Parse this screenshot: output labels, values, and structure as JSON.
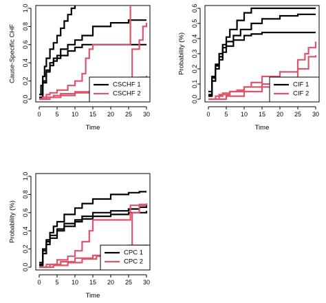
{
  "colors": {
    "black_series": "#000000",
    "red_series": "#df536b",
    "background": "#ffffff"
  },
  "chart_data": [
    {
      "type": "line",
      "step": true,
      "xlabel": "Time",
      "ylabel": "Cause-Specific CHF",
      "xlim": [
        0,
        30
      ],
      "ylim": [
        0,
        1.0
      ],
      "xticks": [
        0,
        5,
        10,
        15,
        20,
        25,
        30
      ],
      "yticks": [
        0.0,
        0.2,
        0.4,
        0.6,
        0.8,
        1.0
      ],
      "legend": {
        "placement": "bottom-right",
        "entries": [
          {
            "label": "CSCHF 1",
            "color": "#000000"
          },
          {
            "label": "CSCHF 2",
            "color": "#df536b"
          }
        ]
      },
      "series": [
        {
          "color": "#000000",
          "x": [
            0,
            0.5,
            1,
            1.5,
            2,
            3,
            4,
            5,
            6,
            7,
            8,
            9,
            10,
            12,
            30
          ],
          "y": [
            0.05,
            0.15,
            0.25,
            0.36,
            0.45,
            0.55,
            0.62,
            0.7,
            0.78,
            0.86,
            0.93,
            1.0,
            1.05,
            1.07,
            1.07
          ]
        },
        {
          "color": "#000000",
          "x": [
            0,
            1,
            2,
            3,
            4,
            5,
            6,
            8,
            10,
            12,
            15,
            20,
            25,
            30
          ],
          "y": [
            0.05,
            0.2,
            0.32,
            0.4,
            0.45,
            0.48,
            0.55,
            0.6,
            0.65,
            0.7,
            0.8,
            0.84,
            0.87,
            0.87
          ]
        },
        {
          "color": "#000000",
          "x": [
            0,
            1,
            2,
            3,
            4,
            5,
            6,
            8,
            10,
            12,
            15,
            20,
            30
          ],
          "y": [
            0.02,
            0.18,
            0.3,
            0.37,
            0.42,
            0.45,
            0.48,
            0.53,
            0.57,
            0.6,
            0.6,
            0.6,
            0.6
          ]
        },
        {
          "color": "#df536b",
          "x": [
            0,
            1,
            2,
            3,
            5,
            8,
            10,
            12,
            13,
            14,
            15,
            25,
            25.5,
            30
          ],
          "y": [
            0,
            0.02,
            0.05,
            0.07,
            0.1,
            0.15,
            0.2,
            0.28,
            0.45,
            0.55,
            0.6,
            0.6,
            1.07,
            1.07
          ]
        },
        {
          "color": "#df536b",
          "x": [
            0,
            2,
            4,
            6,
            10,
            15,
            20,
            25,
            26,
            28,
            29,
            30
          ],
          "y": [
            0,
            0.02,
            0.04,
            0.06,
            0.08,
            0.1,
            0.12,
            0.15,
            0.55,
            0.65,
            0.8,
            0.84
          ]
        },
        {
          "color": "#df536b",
          "x": [
            0,
            3,
            6,
            10,
            15,
            20,
            25,
            28,
            30
          ],
          "y": [
            0,
            0.02,
            0.04,
            0.07,
            0.1,
            0.13,
            0.17,
            0.24,
            0.26
          ]
        }
      ]
    },
    {
      "type": "line",
      "step": true,
      "xlabel": "Time",
      "ylabel": "Probability (%)",
      "xlim": [
        0,
        30
      ],
      "ylim": [
        0,
        0.6
      ],
      "xticks": [
        0,
        5,
        10,
        15,
        20,
        25,
        30
      ],
      "yticks": [
        0.0,
        0.1,
        0.2,
        0.3,
        0.4,
        0.5,
        0.6
      ],
      "legend": {
        "placement": "bottom-right",
        "entries": [
          {
            "label": "CIF 1",
            "color": "#000000"
          },
          {
            "label": "CIF 2",
            "color": "#df536b"
          }
        ]
      },
      "series": [
        {
          "color": "#000000",
          "x": [
            0,
            1,
            2,
            3,
            4,
            5,
            6,
            8,
            10,
            12,
            15,
            30
          ],
          "y": [
            0.05,
            0.15,
            0.23,
            0.3,
            0.36,
            0.41,
            0.46,
            0.52,
            0.57,
            0.6,
            0.6,
            0.6
          ]
        },
        {
          "color": "#000000",
          "x": [
            0,
            1,
            2,
            3,
            4,
            5,
            7,
            9,
            12,
            15,
            20,
            25,
            30
          ],
          "y": [
            0.03,
            0.14,
            0.22,
            0.28,
            0.34,
            0.38,
            0.42,
            0.46,
            0.5,
            0.53,
            0.55,
            0.56,
            0.56
          ]
        },
        {
          "color": "#000000",
          "x": [
            0,
            1,
            2,
            3,
            4,
            5,
            7,
            10,
            12,
            15,
            30
          ],
          "y": [
            0.02,
            0.12,
            0.2,
            0.26,
            0.31,
            0.35,
            0.39,
            0.42,
            0.43,
            0.44,
            0.44
          ]
        },
        {
          "color": "#df536b",
          "x": [
            0,
            2,
            4,
            6,
            8,
            10,
            12,
            15,
            20,
            25,
            27,
            28,
            30
          ],
          "y": [
            0,
            0.02,
            0.04,
            0.05,
            0.06,
            0.08,
            0.11,
            0.15,
            0.18,
            0.26,
            0.3,
            0.34,
            0.38
          ]
        },
        {
          "color": "#df536b",
          "x": [
            0,
            3,
            6,
            10,
            15,
            20,
            25,
            28,
            30
          ],
          "y": [
            0,
            0.03,
            0.05,
            0.08,
            0.1,
            0.12,
            0.2,
            0.28,
            0.29
          ]
        },
        {
          "color": "#df536b",
          "x": [
            0,
            5,
            10,
            15,
            20,
            25,
            30
          ],
          "y": [
            0,
            0.02,
            0.05,
            0.08,
            0.1,
            0.12,
            0.13
          ]
        }
      ]
    },
    {
      "type": "line",
      "step": true,
      "xlabel": "Time",
      "ylabel": "Probability (%)",
      "xlim": [
        0,
        30
      ],
      "ylim": [
        0,
        1.0
      ],
      "xticks": [
        0,
        5,
        10,
        15,
        20,
        25,
        30
      ],
      "yticks": [
        0.0,
        0.2,
        0.4,
        0.6,
        0.8,
        1.0
      ],
      "legend": {
        "placement": "bottom-right",
        "entries": [
          {
            "label": "CPC 1",
            "color": "#000000"
          },
          {
            "label": "CPC 2",
            "color": "#df536b"
          }
        ]
      },
      "series": [
        {
          "color": "#000000",
          "x": [
            0,
            1,
            2,
            3,
            4,
            5,
            7,
            10,
            12,
            15,
            20,
            25,
            28,
            30
          ],
          "y": [
            0.05,
            0.2,
            0.3,
            0.38,
            0.45,
            0.5,
            0.58,
            0.65,
            0.7,
            0.75,
            0.8,
            0.82,
            0.83,
            0.83
          ]
        },
        {
          "color": "#000000",
          "x": [
            0,
            1,
            2,
            3,
            5,
            7,
            10,
            12,
            15,
            20,
            25,
            28,
            30
          ],
          "y": [
            0.03,
            0.18,
            0.28,
            0.35,
            0.42,
            0.48,
            0.52,
            0.56,
            0.6,
            0.62,
            0.64,
            0.66,
            0.7
          ]
        },
        {
          "color": "#000000",
          "x": [
            0,
            1,
            2,
            3,
            5,
            7,
            10,
            12,
            15,
            20,
            25,
            30
          ],
          "y": [
            0.02,
            0.15,
            0.25,
            0.32,
            0.4,
            0.45,
            0.5,
            0.53,
            0.56,
            0.58,
            0.6,
            0.62
          ]
        },
        {
          "color": "#df536b",
          "x": [
            0,
            2,
            5,
            8,
            10,
            12,
            14,
            15,
            20,
            25,
            25.5,
            28,
            30
          ],
          "y": [
            0,
            0.03,
            0.08,
            0.12,
            0.18,
            0.28,
            0.4,
            0.52,
            0.52,
            0.52,
            0.68,
            0.68,
            0.68
          ]
        },
        {
          "color": "#df536b",
          "x": [
            0,
            3,
            6,
            10,
            15,
            20,
            25,
            26,
            28,
            30
          ],
          "y": [
            0,
            0.03,
            0.06,
            0.1,
            0.13,
            0.17,
            0.22,
            0.6,
            0.69,
            0.7
          ]
        },
        {
          "color": "#df536b",
          "x": [
            0,
            4,
            8,
            12,
            16,
            20,
            25,
            30
          ],
          "y": [
            0,
            0.02,
            0.05,
            0.09,
            0.12,
            0.18,
            0.24,
            0.25
          ]
        }
      ]
    }
  ]
}
